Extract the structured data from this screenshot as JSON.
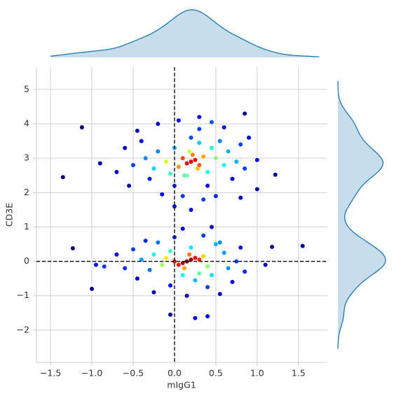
{
  "chart_data": {
    "type": "scatter",
    "x_label": "mIgG1",
    "y_label": "CD3E",
    "x": [
      -1.35,
      -1.12,
      1.22,
      1.55,
      1.18,
      -1.23,
      -1.0,
      -0.9,
      0.85,
      1.0,
      1.0,
      0.25,
      -0.05,
      0.4,
      -0.85,
      -0.95,
      1.1,
      -0.7,
      0.2,
      0.0,
      -0.2,
      0.45,
      -0.55,
      0.9,
      -0.6,
      0.8,
      0.3,
      0.05,
      -0.45,
      0.6,
      -0.5,
      0.85,
      -0.4,
      0.8,
      -0.3,
      0.7,
      -0.35,
      0.75,
      0.1,
      0.35,
      -0.15,
      0.65,
      0.0,
      0.4,
      -0.25,
      0.55,
      -0.2,
      0.6,
      0.5,
      -0.1,
      0.3,
      0.15,
      0.2,
      -0.05,
      0.45,
      0.3,
      0.12,
      0.0,
      0.4,
      -0.1,
      0.5,
      0.35,
      0.05,
      0.28,
      0.18,
      0.22,
      0.1,
      0.3,
      0.15,
      0.25,
      0.2,
      -0.7,
      0.55,
      -0.25,
      0.15,
      -0.6,
      0.85,
      -0.5,
      0.45,
      0.1,
      0.8,
      -0.35,
      0.7,
      -0.45,
      0.75,
      -0.4,
      0.4,
      -0.05,
      0.55,
      -0.2,
      0.35,
      0.0,
      0.65,
      -0.3,
      0.6,
      -0.25,
      0.25,
      0.45,
      -0.1,
      0.3,
      0.5,
      -0.15,
      0.1,
      0.2,
      0.4,
      -0.05,
      0.35,
      0.0,
      0.12,
      0.3,
      0.18,
      0.05,
      0.25,
      0.1,
      0.2,
      0.15
    ],
    "y": [
      2.45,
      3.9,
      2.52,
      0.45,
      0.42,
      0.38,
      -0.8,
      2.85,
      4.3,
      2.1,
      2.95,
      -1.65,
      -1.55,
      -1.6,
      -0.15,
      -0.1,
      -0.1,
      2.6,
      1.5,
      1.6,
      4.0,
      4.05,
      2.2,
      3.6,
      3.3,
      1.85,
      4.2,
      4.1,
      3.8,
      3.9,
      2.8,
      2.7,
      3.5,
      3.4,
      2.4,
      2.4,
      3.0,
      2.9,
      1.9,
      1.8,
      1.95,
      3.2,
      2.2,
      2.2,
      2.7,
      3.5,
      3.2,
      2.8,
      1.9,
      2.9,
      3.45,
      2.5,
      3.6,
      2.55,
      3.3,
      3.85,
      2.5,
      3.3,
      2.6,
      2.9,
      3.0,
      3.05,
      2.75,
      2.7,
      3.2,
      3.1,
      3.0,
      2.8,
      2.85,
      2.95,
      2.9,
      0.2,
      -0.95,
      -0.9,
      -1.0,
      -0.2,
      -0.3,
      0.35,
      1.0,
      0.95,
      0.4,
      0.6,
      -0.6,
      -0.5,
      0.0,
      0.05,
      -0.75,
      -0.7,
      0.55,
      0.55,
      0.75,
      0.7,
      -0.2,
      -0.25,
      0.25,
      0.2,
      -0.55,
      -0.4,
      0.1,
      -0.35,
      0.5,
      -0.1,
      -0.4,
      0.4,
      -0.15,
      0.3,
      0.15,
      0.0,
      -0.2,
      0.05,
      0.2,
      -0.1,
      0.1,
      -0.05,
      0.05,
      0.0
    ],
    "xlim": [
      -1.67,
      1.85
    ],
    "ylim": [
      -2.94,
      5.65
    ],
    "xticks": [
      {
        "value": -1.5,
        "label": "−1.5"
      },
      {
        "value": -1.0,
        "label": "−1.0"
      },
      {
        "value": -0.5,
        "label": "−0.5"
      },
      {
        "value": 0,
        "label": "0.0"
      },
      0.5,
      {
        "value": 1.0,
        "label": "1.0"
      },
      1.5
    ],
    "yticks": [
      {
        "value": -2,
        "label": "−2"
      },
      {
        "value": -1,
        "label": "−1"
      },
      0,
      1,
      2,
      3,
      4,
      5
    ],
    "grid": true,
    "vlines": [
      0
    ],
    "hlines": [
      0
    ],
    "marginal": "kde",
    "color_by": "density",
    "marginal_color": "#1f77b4"
  }
}
